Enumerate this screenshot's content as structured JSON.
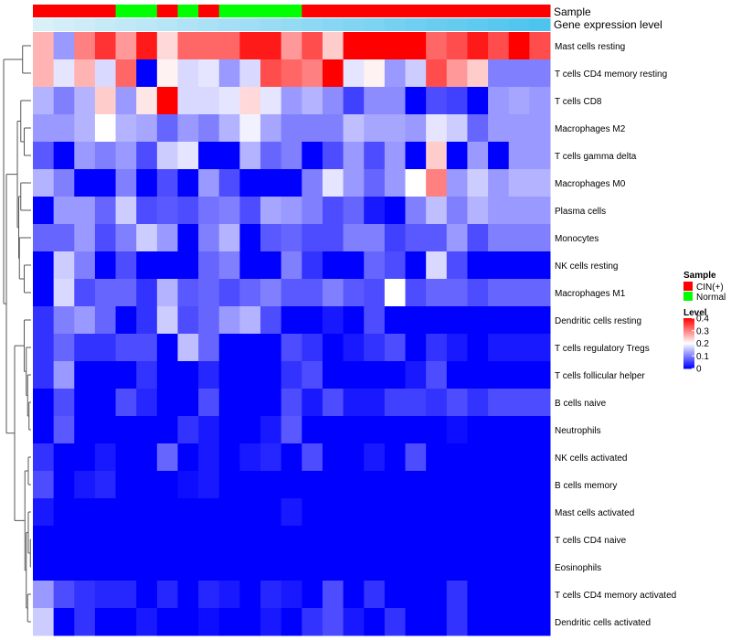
{
  "chart_data": {
    "type": "heatmap",
    "title": "",
    "annotation_labels": {
      "sample": "Sample",
      "expression": "Gene expression level"
    },
    "sample_groups": [
      "CIN",
      "CIN",
      "CIN",
      "CIN",
      "Normal",
      "Normal",
      "CIN",
      "Normal",
      "CIN",
      "Normal",
      "Normal",
      "Normal",
      "Normal",
      "CIN",
      "CIN",
      "CIN",
      "CIN",
      "CIN",
      "CIN",
      "CIN",
      "CIN",
      "CIN",
      "CIN",
      "CIN",
      "CIN"
    ],
    "expression_gradient": [
      0.03,
      0.07,
      0.11,
      0.15,
      0.19,
      0.23,
      0.27,
      0.31,
      0.35,
      0.39,
      0.43,
      0.47,
      0.51,
      0.55,
      0.59,
      0.63,
      0.67,
      0.71,
      0.75,
      0.79,
      0.83,
      0.87,
      0.91,
      0.95,
      0.99
    ],
    "rows": [
      "Mast cells resting",
      "T cells CD4 memory resting",
      "T cells CD8",
      "Macrophages M2",
      "T cells gamma delta",
      "Macrophages M0",
      "Plasma cells",
      "Monocytes",
      "NK cells resting",
      "Macrophages M1",
      "Dendritic cells resting",
      "T cells regulatory  Tregs",
      "T cells follicular helper",
      "B cells naive",
      "Neutrophils",
      "NK cells activated",
      "B cells memory",
      "Mast cells activated",
      "T cells CD4 naive",
      "Eosinophils",
      "T cells CD4 memory activated",
      "Dendritic cells activated"
    ],
    "values": [
      [
        0.26,
        0.12,
        0.3,
        0.36,
        0.28,
        0.38,
        0.23,
        0.32,
        0.32,
        0.32,
        0.38,
        0.38,
        0.28,
        0.34,
        0.24,
        0.4,
        0.4,
        0.4,
        0.4,
        0.32,
        0.34,
        0.38,
        0.34,
        0.4,
        0.34
      ],
      [
        0.26,
        0.18,
        0.26,
        0.17,
        0.32,
        0.0,
        0.21,
        0.17,
        0.18,
        0.12,
        0.17,
        0.34,
        0.32,
        0.3,
        0.4,
        0.18,
        0.21,
        0.12,
        0.16,
        0.34,
        0.28,
        0.24,
        0.1,
        0.1,
        0.1
      ],
      [
        0.14,
        0.1,
        0.14,
        0.24,
        0.12,
        0.22,
        0.4,
        0.17,
        0.17,
        0.18,
        0.23,
        0.18,
        0.12,
        0.14,
        0.11,
        0.05,
        0.11,
        0.11,
        0.0,
        0.06,
        0.05,
        0.0,
        0.12,
        0.13,
        0.12
      ],
      [
        0.12,
        0.12,
        0.14,
        0.2,
        0.14,
        0.13,
        0.08,
        0.12,
        0.1,
        0.14,
        0.19,
        0.13,
        0.1,
        0.1,
        0.1,
        0.15,
        0.13,
        0.13,
        0.12,
        0.18,
        0.16,
        0.08,
        0.12,
        0.12,
        0.12
      ],
      [
        0.07,
        0.0,
        0.12,
        0.1,
        0.12,
        0.06,
        0.16,
        0.18,
        0.0,
        0.0,
        0.14,
        0.08,
        0.1,
        0.0,
        0.06,
        0.12,
        0.06,
        0.12,
        0.0,
        0.24,
        0.0,
        0.12,
        0.0,
        0.12,
        0.12
      ],
      [
        0.14,
        0.1,
        0.0,
        0.0,
        0.1,
        0.0,
        0.06,
        0.0,
        0.12,
        0.06,
        0.0,
        0.0,
        0.0,
        0.1,
        0.18,
        0.12,
        0.08,
        0.12,
        0.2,
        0.3,
        0.12,
        0.16,
        0.12,
        0.14,
        0.14
      ],
      [
        0.0,
        0.12,
        0.12,
        0.08,
        0.16,
        0.06,
        0.07,
        0.06,
        0.09,
        0.1,
        0.06,
        0.13,
        0.12,
        0.1,
        0.06,
        0.08,
        0.02,
        0.0,
        0.1,
        0.15,
        0.1,
        0.14,
        0.12,
        0.12,
        0.12
      ],
      [
        0.08,
        0.08,
        0.12,
        0.06,
        0.1,
        0.16,
        0.12,
        0.0,
        0.1,
        0.14,
        0.0,
        0.07,
        0.08,
        0.06,
        0.06,
        0.1,
        0.1,
        0.05,
        0.07,
        0.07,
        0.12,
        0.06,
        0.1,
        0.1,
        0.1
      ],
      [
        0.0,
        0.16,
        0.1,
        0.0,
        0.06,
        0.0,
        0.0,
        0.0,
        0.08,
        0.1,
        0.0,
        0.0,
        0.1,
        0.04,
        0.0,
        0.0,
        0.08,
        0.06,
        0.0,
        0.17,
        0.06,
        0.0,
        0.0,
        0.0,
        0.0
      ],
      [
        0.0,
        0.17,
        0.06,
        0.08,
        0.08,
        0.04,
        0.14,
        0.07,
        0.08,
        0.06,
        0.08,
        0.1,
        0.07,
        0.07,
        0.1,
        0.07,
        0.06,
        0.2,
        0.06,
        0.08,
        0.08,
        0.06,
        0.08,
        0.08,
        0.08
      ],
      [
        0.04,
        0.1,
        0.12,
        0.08,
        0.0,
        0.04,
        0.16,
        0.06,
        0.08,
        0.12,
        0.14,
        0.06,
        0.0,
        0.0,
        0.02,
        0.0,
        0.06,
        0.0,
        0.0,
        0.0,
        0.0,
        0.0,
        0.0,
        0.0,
        0.0
      ],
      [
        0.04,
        0.08,
        0.04,
        0.04,
        0.06,
        0.06,
        0.0,
        0.15,
        0.08,
        0.0,
        0.0,
        0.0,
        0.06,
        0.04,
        0.0,
        0.02,
        0.04,
        0.06,
        0.0,
        0.04,
        0.02,
        0.0,
        0.02,
        0.02,
        0.02
      ],
      [
        0.04,
        0.12,
        0.0,
        0.0,
        0.0,
        0.04,
        0.0,
        0.0,
        0.03,
        0.0,
        0.0,
        0.0,
        0.04,
        0.06,
        0.0,
        0.0,
        0.0,
        0.0,
        0.02,
        0.06,
        0.0,
        0.0,
        0.0,
        0.0,
        0.0
      ],
      [
        0.0,
        0.06,
        0.0,
        0.0,
        0.06,
        0.03,
        0.0,
        0.0,
        0.06,
        0.0,
        0.0,
        0.0,
        0.06,
        0.02,
        0.06,
        0.02,
        0.02,
        0.05,
        0.05,
        0.04,
        0.06,
        0.04,
        0.06,
        0.06,
        0.06
      ],
      [
        0.0,
        0.07,
        0.0,
        0.0,
        0.0,
        0.0,
        0.0,
        0.04,
        0.02,
        0.0,
        0.0,
        0.02,
        0.07,
        0.0,
        0.0,
        0.0,
        0.0,
        0.0,
        0.0,
        0.0,
        0.01,
        0.0,
        0.0,
        0.0,
        0.0
      ],
      [
        0.04,
        0.0,
        0.0,
        0.02,
        0.0,
        0.0,
        0.08,
        0.0,
        0.02,
        0.0,
        0.02,
        0.03,
        0.0,
        0.06,
        0.0,
        0.0,
        0.02,
        0.0,
        0.06,
        0.0,
        0.0,
        0.0,
        0.0,
        0.0,
        0.0
      ],
      [
        0.06,
        0.0,
        0.02,
        0.03,
        0.0,
        0.0,
        0.0,
        0.01,
        0.02,
        0.0,
        0.0,
        0.0,
        0.0,
        0.0,
        0.0,
        0.0,
        0.0,
        0.0,
        0.0,
        0.0,
        0.0,
        0.0,
        0.0,
        0.0,
        0.0
      ],
      [
        0.02,
        0.0,
        0.0,
        0.0,
        0.0,
        0.0,
        0.0,
        0.0,
        0.0,
        0.0,
        0.0,
        0.0,
        0.02,
        0.0,
        0.0,
        0.0,
        0.0,
        0.0,
        0.0,
        0.0,
        0.0,
        0.0,
        0.0,
        0.0,
        0.0
      ],
      [
        0.0,
        0.0,
        0.0,
        0.0,
        0.0,
        0.0,
        0.0,
        0.0,
        0.0,
        0.0,
        0.0,
        0.0,
        0.0,
        0.0,
        0.0,
        0.0,
        0.0,
        0.0,
        0.0,
        0.0,
        0.0,
        0.0,
        0.0,
        0.0,
        0.0
      ],
      [
        0.0,
        0.0,
        0.0,
        0.0,
        0.0,
        0.0,
        0.0,
        0.0,
        0.0,
        0.0,
        0.0,
        0.0,
        0.0,
        0.0,
        0.0,
        0.0,
        0.0,
        0.0,
        0.0,
        0.0,
        0.0,
        0.0,
        0.0,
        0.0,
        0.0
      ],
      [
        0.12,
        0.06,
        0.04,
        0.03,
        0.03,
        0.0,
        0.03,
        0.0,
        0.03,
        0.02,
        0.0,
        0.03,
        0.02,
        0.0,
        0.06,
        0.0,
        0.04,
        0.0,
        0.0,
        0.0,
        0.04,
        0.0,
        0.0,
        0.0,
        0.0
      ],
      [
        0.16,
        0.0,
        0.04,
        0.0,
        0.0,
        0.02,
        0.0,
        0.0,
        0.01,
        0.0,
        0.0,
        0.02,
        0.0,
        0.04,
        0.06,
        0.02,
        0.0,
        0.04,
        0.0,
        0.0,
        0.04,
        0.0,
        0.0,
        0.0,
        0.0
      ]
    ],
    "value_range": [
      0,
      0.4
    ],
    "color_scale": {
      "low": "#0000ff",
      "mid": "#ffffff",
      "high": "#ff0000",
      "mid_value": 0.2
    },
    "sample_colors": {
      "CIN": "#ff0000",
      "Normal": "#00ff00"
    },
    "expression_colors": {
      "low": "#ddf1f9",
      "high": "#4cc4ee"
    },
    "legend": {
      "sample_title": "Sample",
      "sample_entries": [
        {
          "key": "CIN",
          "label": "CIN(+)"
        },
        {
          "key": "Normal",
          "label": "Normal"
        }
      ],
      "level_title": "Level",
      "level_ticks": [
        {
          "value": 0.4,
          "label": "0.4"
        },
        {
          "value": 0.3,
          "label": "0.3"
        },
        {
          "value": 0.2,
          "label": "0.2"
        },
        {
          "value": 0.1,
          "label": "0.1"
        },
        {
          "value": 0,
          "label": "0"
        }
      ]
    }
  }
}
